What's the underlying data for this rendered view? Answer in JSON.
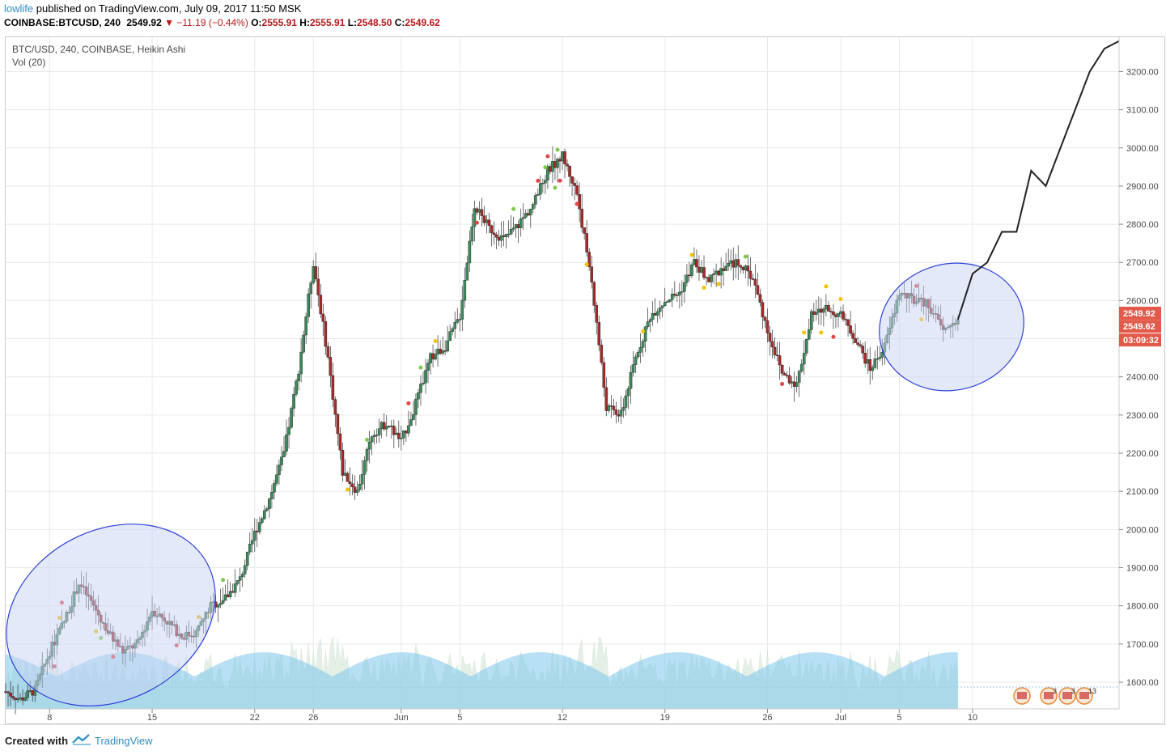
{
  "header": {
    "user": "lowlife",
    "published": "published on TradingView.com, July 09, 2017 11:50 MSK",
    "symbol": "COINBASE:BTCUSD, 240",
    "last": "2549.92",
    "change_arrow": "▼",
    "change": "−11.19 (−0.44%)",
    "o_label": "O:",
    "o_val": "2555.91",
    "h_label": "H:",
    "h_val": "2555.91",
    "l_label": "L:",
    "l_val": "2548.50",
    "c_label": "C:",
    "c_val": "2549.62"
  },
  "legend": {
    "series": "BTC/USD, 240, COINBASE, Heikin Ashi",
    "volume": "Vol (20)"
  },
  "price_badges": {
    "last": "2549.92",
    "close": "2549.62",
    "countdown": "03:09:32"
  },
  "event_flags": [
    "3",
    "3",
    "13"
  ],
  "footer": {
    "created": "Created with",
    "brand": "TradingView"
  },
  "colors": {
    "up": "#3b8a5a",
    "down": "#a52a2a",
    "grid": "#e6e9ec",
    "accent": "#2d8ec7",
    "badge": "#e25a4a",
    "ellipse_stroke": "#2b3fd8",
    "ellipse_fill": "#c9d4f4"
  },
  "chart_data": {
    "type": "line",
    "title": "BTC/USD, 240, COINBASE, Heikin Ashi",
    "y_ticks": [
      1600,
      1700,
      1800,
      1900,
      2000,
      2100,
      2200,
      2300,
      2400,
      2500,
      2600,
      2700,
      2800,
      2900,
      3000,
      3100,
      3200
    ],
    "ylim": [
      1530,
      3290
    ],
    "x_ticks": [
      "8",
      "15",
      "22",
      "26",
      "Jun",
      "5",
      "12",
      "19",
      "26",
      "Jul",
      "5",
      "10"
    ],
    "x": [
      "2017-05-05",
      "2017-05-06",
      "2017-05-07",
      "2017-05-08",
      "2017-05-09",
      "2017-05-10",
      "2017-05-11",
      "2017-05-12",
      "2017-05-13",
      "2017-05-14",
      "2017-05-15",
      "2017-05-16",
      "2017-05-17",
      "2017-05-18",
      "2017-05-19",
      "2017-05-20",
      "2017-05-21",
      "2017-05-22",
      "2017-05-23",
      "2017-05-24",
      "2017-05-25",
      "2017-05-26",
      "2017-05-27",
      "2017-05-28",
      "2017-05-29",
      "2017-05-30",
      "2017-05-31",
      "2017-06-01",
      "2017-06-02",
      "2017-06-03",
      "2017-06-04",
      "2017-06-05",
      "2017-06-06",
      "2017-06-07",
      "2017-06-08",
      "2017-06-09",
      "2017-06-10",
      "2017-06-11",
      "2017-06-12",
      "2017-06-13",
      "2017-06-14",
      "2017-06-15",
      "2017-06-16",
      "2017-06-17",
      "2017-06-18",
      "2017-06-19",
      "2017-06-20",
      "2017-06-21",
      "2017-06-22",
      "2017-06-23",
      "2017-06-24",
      "2017-06-25",
      "2017-06-26",
      "2017-06-27",
      "2017-06-28",
      "2017-06-29",
      "2017-06-30",
      "2017-07-01",
      "2017-07-02",
      "2017-07-03",
      "2017-07-04",
      "2017-07-05",
      "2017-07-06",
      "2017-07-07",
      "2017-07-08",
      "2017-07-09"
    ],
    "series": [
      {
        "values": [
          1575,
          1555,
          1580,
          1680,
          1760,
          1860,
          1800,
          1730,
          1680,
          1700,
          1790,
          1760,
          1720,
          1730,
          1800,
          1820,
          1870,
          1990,
          2080,
          2200,
          2420,
          2700,
          2450,
          2150,
          2100,
          2250,
          2280,
          2230,
          2330,
          2450,
          2480,
          2560,
          2850,
          2790,
          2760,
          2800,
          2850,
          2940,
          2980,
          2880,
          2650,
          2320,
          2300,
          2450,
          2560,
          2600,
          2620,
          2700,
          2650,
          2690,
          2700,
          2660,
          2520,
          2410,
          2380,
          2560,
          2580,
          2560,
          2500,
          2420,
          2480,
          2620,
          2600,
          2590,
          2520,
          2550
        ]
      },
      {
        "name": "",
        "type": "line",
        "x": [
          "2017-07-09",
          "2017-07-10",
          "2017-07-11",
          "2017-07-12",
          "2017-07-13",
          "2017-07-14",
          "2017-07-15",
          "2017-07-16",
          "2017-07-17",
          "2017-07-18",
          "2017-07-19",
          "2017-07-20"
        ],
        "values": [
          2550,
          2670,
          2700,
          2780,
          2780,
          2940,
          2900,
          3000,
          3100,
          3200,
          3260,
          3280
        ]
      }
    ],
    "volume_label": "Vol (20)",
    "ellipses": 2,
    "grid": true,
    "legend": "top-left"
  }
}
